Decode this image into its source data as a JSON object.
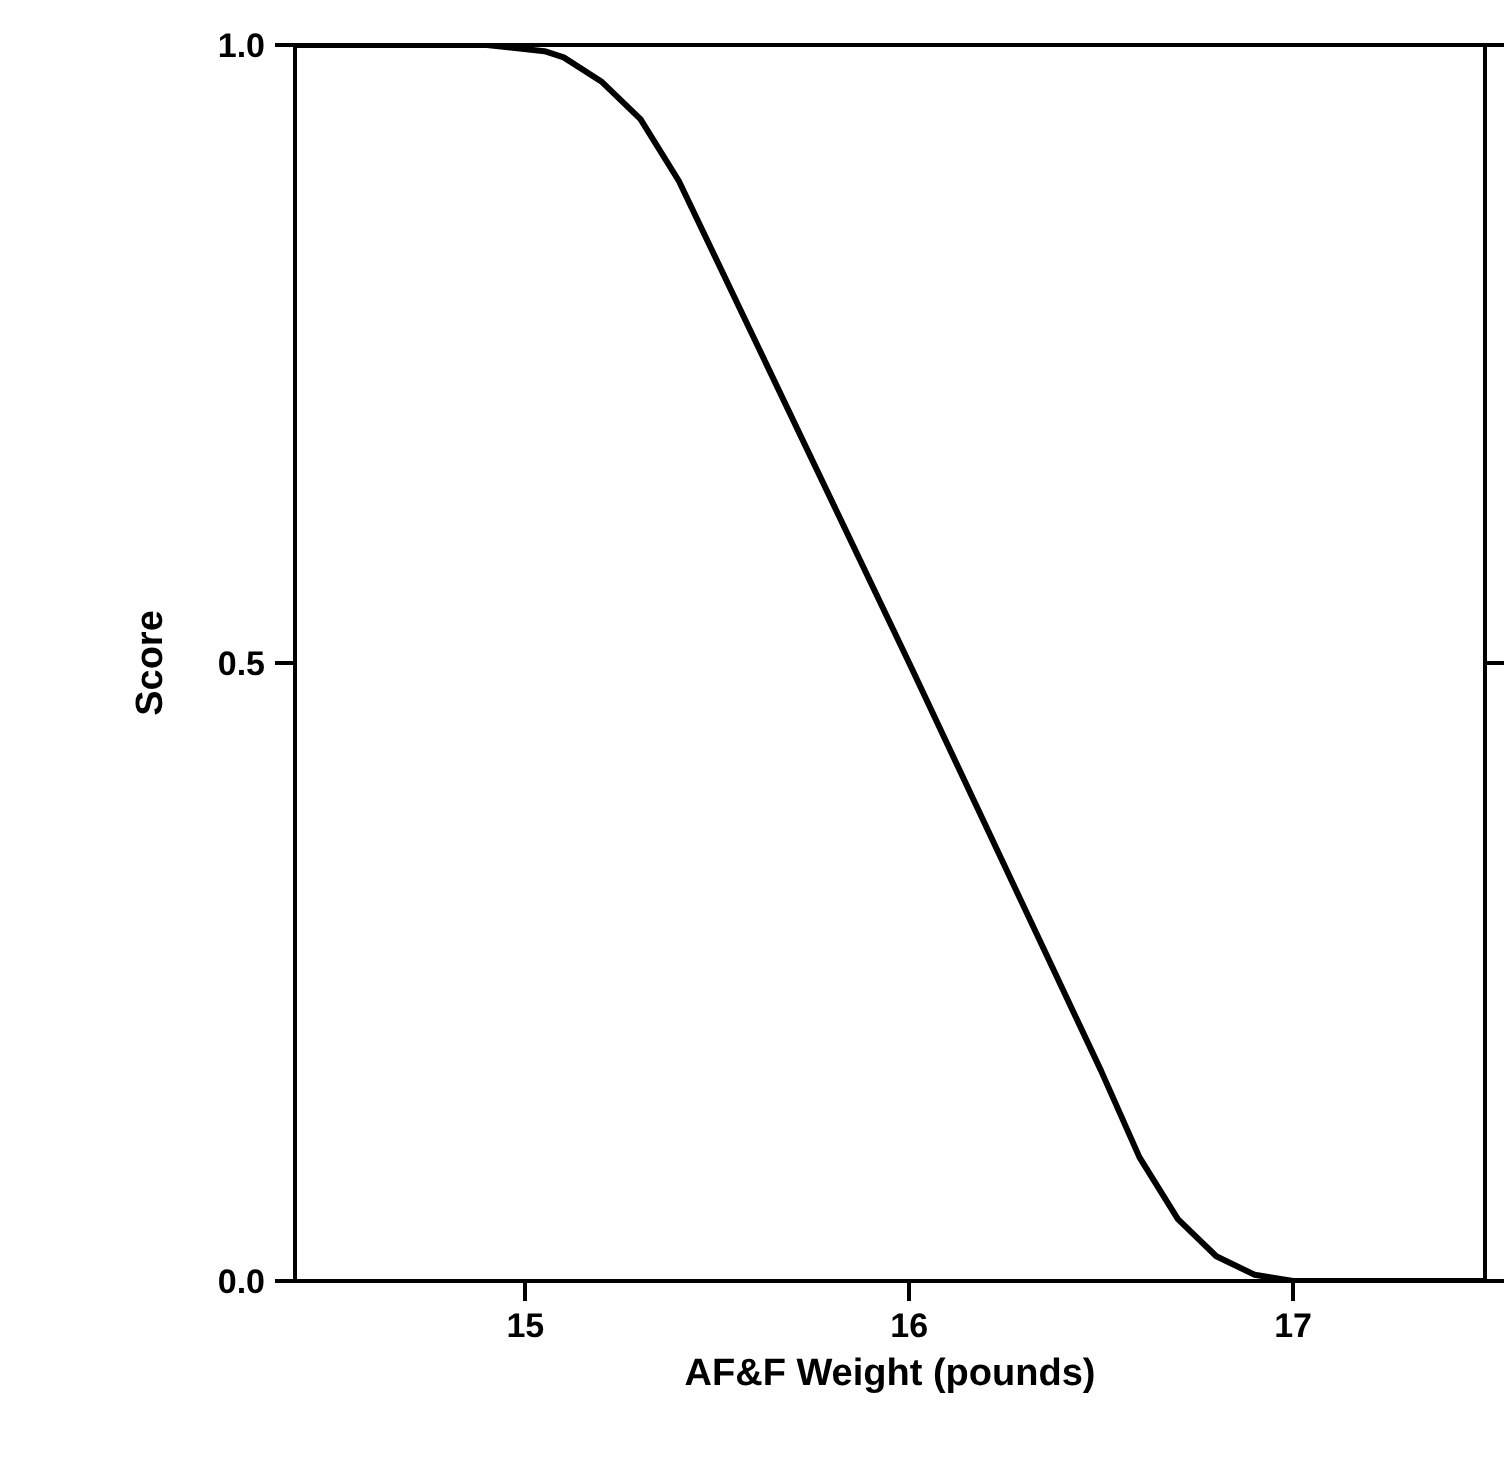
{
  "chart_data": {
    "type": "line",
    "xlabel": "AF&F Weight (pounds)",
    "ylabel": "Score",
    "xlim": [
      14.4,
      17.5
    ],
    "ylim": [
      0.0,
      1.0
    ],
    "xticks": [
      15,
      16,
      17
    ],
    "yticks": [
      {
        "value": 0.0,
        "label": "0.0"
      },
      {
        "value": 0.5,
        "label": "0.5"
      },
      {
        "value": 1.0,
        "label": "1.0"
      }
    ],
    "grid": false,
    "marker": "none",
    "line_style": "solid",
    "series": [
      {
        "color": "#000000",
        "x": [
          14.4,
          14.9,
          15.05,
          15.1,
          15.2,
          15.3,
          15.4,
          16.0,
          16.5,
          16.6,
          16.7,
          16.8,
          16.9,
          17.0,
          17.5
        ],
        "values": [
          1.0,
          1.0,
          0.995,
          0.99,
          0.97,
          0.94,
          0.89,
          0.5,
          0.17,
          0.1,
          0.05,
          0.02,
          0.005,
          0.0,
          0.0
        ]
      }
    ]
  }
}
